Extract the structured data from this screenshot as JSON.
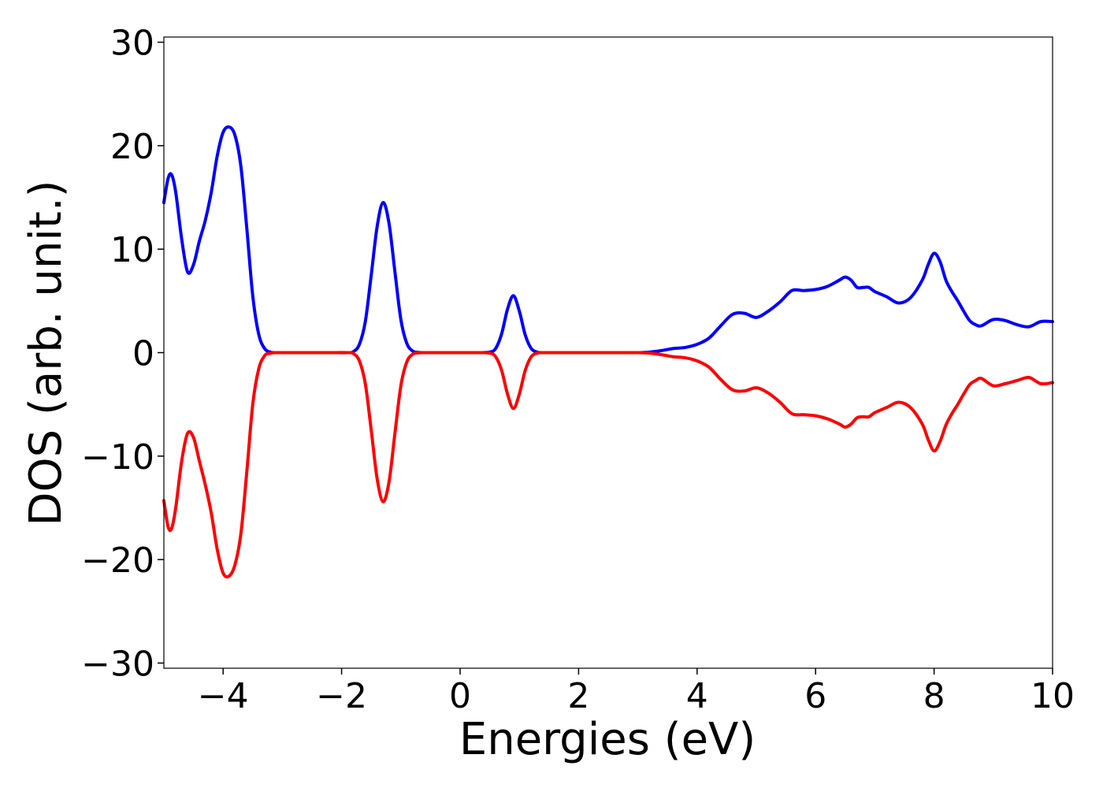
{
  "chart_data": {
    "type": "line",
    "title": "",
    "xlabel": "Energies (eV)",
    "ylabel": "DOS (arb. unit.)",
    "xlim": [
      -5,
      10
    ],
    "ylim": [
      -30.5,
      30.5
    ],
    "xticks": [
      -4,
      -2,
      0,
      2,
      4,
      6,
      8,
      10
    ],
    "xtick_labels": [
      "−4",
      "−2",
      "0",
      "2",
      "4",
      "6",
      "8",
      "10"
    ],
    "yticks": [
      -30,
      -20,
      -10,
      0,
      10,
      20,
      30
    ],
    "ytick_labels": [
      "−30",
      "−20",
      "−10",
      "0",
      "10",
      "20",
      "30"
    ],
    "grid": false,
    "legend": "none",
    "series": [
      {
        "color": "#0000ff",
        "x": [
          -5.0,
          -4.93,
          -4.87,
          -4.8,
          -4.7,
          -4.6,
          -4.5,
          -4.4,
          -4.3,
          -4.2,
          -4.1,
          -4.0,
          -3.9,
          -3.8,
          -3.7,
          -3.6,
          -3.5,
          -3.4,
          -3.3,
          -3.2,
          -3.1,
          -3.0,
          -2.9,
          -2.8,
          -2.5,
          -2.2,
          -1.9,
          -1.8,
          -1.7,
          -1.6,
          -1.5,
          -1.4,
          -1.3,
          -1.2,
          -1.1,
          -1.0,
          -0.9,
          -0.8,
          -0.7,
          -0.6,
          -0.5,
          -0.4,
          -0.3,
          0.0,
          0.3,
          0.5,
          0.6,
          0.7,
          0.8,
          0.9,
          1.0,
          1.1,
          1.2,
          1.3,
          1.4,
          1.6,
          2.0,
          2.5,
          3.0,
          3.2,
          3.4,
          3.6,
          3.8,
          4.0,
          4.2,
          4.4,
          4.6,
          4.8,
          5.0,
          5.2,
          5.4,
          5.6,
          5.8,
          6.0,
          6.2,
          6.4,
          6.5,
          6.6,
          6.7,
          6.8,
          6.9,
          7.0,
          7.2,
          7.4,
          7.6,
          7.8,
          7.9,
          8.0,
          8.1,
          8.2,
          8.3,
          8.4,
          8.5,
          8.6,
          8.7,
          8.8,
          9.0,
          9.2,
          9.4,
          9.6,
          9.8,
          10.0
        ],
        "values": [
          14.5,
          16.8,
          17.2,
          15.5,
          11.0,
          7.8,
          8.5,
          10.8,
          12.8,
          15.5,
          19.0,
          21.3,
          21.8,
          21.0,
          18.0,
          12.0,
          5.5,
          1.8,
          0.4,
          0.05,
          0.0,
          0.0,
          0.0,
          0.0,
          0.0,
          0.0,
          0.0,
          0.1,
          0.8,
          3.0,
          7.5,
          12.2,
          14.5,
          12.5,
          7.8,
          3.2,
          0.9,
          0.15,
          0.02,
          0.0,
          0.0,
          0.0,
          0.0,
          0.0,
          0.0,
          0.05,
          0.4,
          1.8,
          4.2,
          5.5,
          4.0,
          1.7,
          0.4,
          0.05,
          0.0,
          0.0,
          0.0,
          0.0,
          0.0,
          0.05,
          0.2,
          0.4,
          0.5,
          0.8,
          1.4,
          2.6,
          3.7,
          3.8,
          3.4,
          4.0,
          4.9,
          6.0,
          6.0,
          6.1,
          6.4,
          7.0,
          7.3,
          7.0,
          6.3,
          6.3,
          6.3,
          5.9,
          5.4,
          4.8,
          5.3,
          7.0,
          8.5,
          9.6,
          8.8,
          7.0,
          5.9,
          5.0,
          4.0,
          3.1,
          2.7,
          2.6,
          3.2,
          3.1,
          2.7,
          2.5,
          3.0,
          3.0
        ]
      },
      {
        "color": "#ff0000",
        "x": [
          -5.0,
          -4.93,
          -4.87,
          -4.8,
          -4.7,
          -4.6,
          -4.5,
          -4.4,
          -4.3,
          -4.2,
          -4.1,
          -4.0,
          -3.9,
          -3.8,
          -3.7,
          -3.6,
          -3.5,
          -3.4,
          -3.3,
          -3.2,
          -3.1,
          -3.0,
          -2.9,
          -2.8,
          -2.5,
          -2.2,
          -1.9,
          -1.8,
          -1.7,
          -1.6,
          -1.5,
          -1.4,
          -1.3,
          -1.2,
          -1.1,
          -1.0,
          -0.9,
          -0.8,
          -0.7,
          -0.6,
          -0.5,
          -0.4,
          -0.3,
          0.0,
          0.3,
          0.5,
          0.6,
          0.7,
          0.8,
          0.9,
          1.0,
          1.1,
          1.2,
          1.3,
          1.4,
          1.6,
          2.0,
          2.5,
          3.0,
          3.2,
          3.4,
          3.6,
          3.8,
          4.0,
          4.2,
          4.4,
          4.6,
          4.8,
          5.0,
          5.2,
          5.4,
          5.6,
          5.8,
          6.0,
          6.2,
          6.4,
          6.5,
          6.6,
          6.7,
          6.8,
          6.9,
          7.0,
          7.2,
          7.4,
          7.6,
          7.8,
          7.9,
          8.0,
          8.1,
          8.2,
          8.3,
          8.4,
          8.5,
          8.6,
          8.7,
          8.8,
          9.0,
          9.2,
          9.4,
          9.6,
          9.8,
          10.0
        ],
        "values": [
          -14.3,
          -16.8,
          -17.0,
          -15.0,
          -10.5,
          -7.8,
          -8.2,
          -10.5,
          -12.8,
          -15.5,
          -19.0,
          -21.3,
          -21.6,
          -20.5,
          -17.5,
          -11.5,
          -5.0,
          -1.6,
          -0.3,
          -0.05,
          0.0,
          0.0,
          0.0,
          0.0,
          0.0,
          0.0,
          0.0,
          -0.1,
          -0.8,
          -3.0,
          -7.5,
          -12.2,
          -14.4,
          -12.5,
          -7.8,
          -3.2,
          -0.9,
          -0.15,
          -0.02,
          0.0,
          0.0,
          0.0,
          0.0,
          0.0,
          0.0,
          -0.05,
          -0.4,
          -1.7,
          -4.0,
          -5.4,
          -4.0,
          -1.7,
          -0.4,
          -0.05,
          0.0,
          0.0,
          0.0,
          0.0,
          0.0,
          -0.05,
          -0.2,
          -0.4,
          -0.5,
          -0.8,
          -1.4,
          -2.6,
          -3.6,
          -3.7,
          -3.4,
          -3.9,
          -4.8,
          -5.9,
          -6.0,
          -6.1,
          -6.4,
          -6.9,
          -7.2,
          -6.9,
          -6.3,
          -6.2,
          -6.2,
          -5.8,
          -5.3,
          -4.8,
          -5.3,
          -6.9,
          -8.4,
          -9.5,
          -8.6,
          -7.0,
          -5.9,
          -5.0,
          -4.0,
          -3.1,
          -2.7,
          -2.5,
          -3.2,
          -3.0,
          -2.7,
          -2.4,
          -3.0,
          -2.9
        ]
      }
    ]
  }
}
